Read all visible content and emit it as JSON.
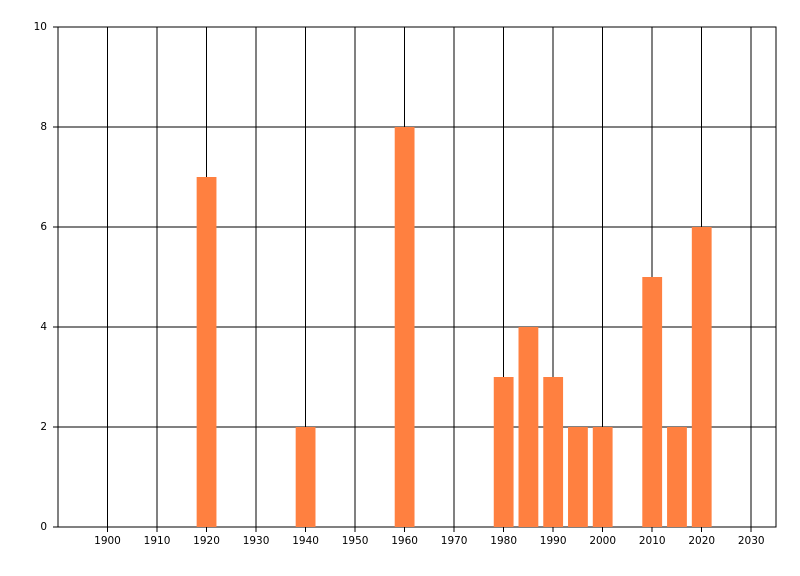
{
  "chart_data": {
    "type": "bar",
    "x": [
      1920,
      1940,
      1960,
      1980,
      1985,
      1990,
      1995,
      2000,
      2010,
      2015,
      2020
    ],
    "values": [
      7,
      2,
      8,
      3,
      4,
      3,
      2,
      2,
      5,
      2,
      6
    ],
    "color": "#ff8040",
    "xlim": [
      1890,
      2035
    ],
    "xticks": [
      1900,
      1910,
      1920,
      1930,
      1940,
      1950,
      1960,
      1970,
      1980,
      1990,
      2000,
      2010,
      2020,
      2030
    ],
    "ylim": [
      0,
      10
    ],
    "yticks": [
      0,
      2,
      4,
      6,
      8,
      10
    ],
    "grid": true
  }
}
